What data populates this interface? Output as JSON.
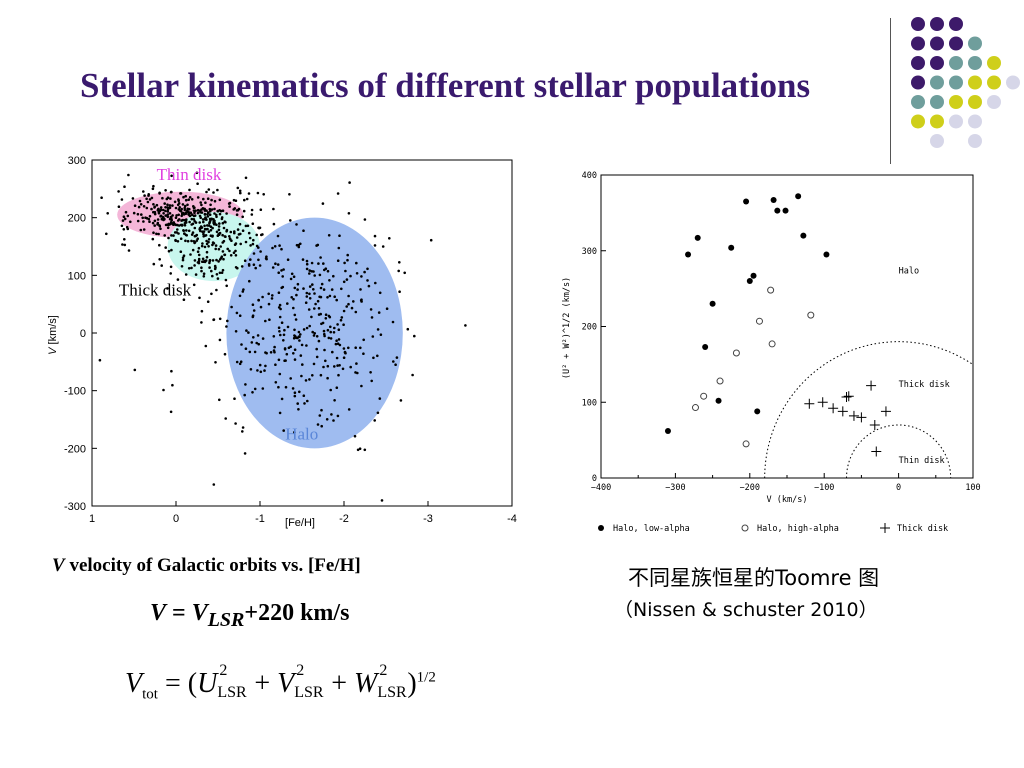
{
  "slide": {
    "title": "Stellar kinematics of different stellar populations",
    "caption_left": {
      "italic": "V",
      "rest": " velocity of Galactic orbits vs. [Fe/H]"
    },
    "formula_v": {
      "lhs": "V",
      "eq": " = ",
      "v": "V",
      "sub": "LSR",
      "rest": "+220 km/s"
    },
    "formula_vtot": {
      "v": "V",
      "v_sub": "tot",
      "eq": " = (",
      "u": "U",
      "lsr": "LSR",
      "plus": " + ",
      "vv": "V",
      "w": "W",
      "close": ")",
      "sq": "2",
      "exp": "1/2"
    },
    "caption_right_1": "不同星族恒星的Toomre 图",
    "caption_right_2": "（Nissen & schuster 2010）"
  },
  "decor": {
    "dot_colors": {
      "purple": "#3d1a6a",
      "teal": "#6f9e9c",
      "yellow": "#cfcf1a",
      "lavender": "#d6d6e8"
    },
    "dot_grid": [
      [
        "purple",
        "purple",
        "purple",
        "",
        "",
        ""
      ],
      [
        "purple",
        "purple",
        "purple",
        "teal",
        "",
        ""
      ],
      [
        "purple",
        "purple",
        "teal",
        "teal",
        "yellow",
        ""
      ],
      [
        "purple",
        "teal",
        "teal",
        "yellow",
        "yellow",
        "lavender"
      ],
      [
        "teal",
        "teal",
        "yellow",
        "yellow",
        "lavender",
        ""
      ],
      [
        "yellow",
        "yellow",
        "lavender",
        "lavender",
        "",
        ""
      ],
      [
        "",
        "lavender",
        "",
        "lavender",
        "",
        ""
      ]
    ]
  },
  "chart_data": [
    {
      "type": "scatter",
      "xlabel": "[Fe/H]",
      "ylabel_italic": "V",
      "ylabel_rest": " [km/s]",
      "xlim": [
        1,
        -4
      ],
      "ylim": [
        -300,
        300
      ],
      "xticks": [
        1,
        0,
        -1,
        -2,
        -3,
        -4
      ],
      "yticks": [
        300,
        200,
        100,
        0,
        -100,
        -200,
        -300
      ],
      "annotations": [
        {
          "text": "Thin disk",
          "color": "#e040e0",
          "x": 0.23,
          "y": 265
        },
        {
          "text": "Thick disk",
          "color": "#000000",
          "x": 0.68,
          "y": 65
        },
        {
          "text": "Halo",
          "color": "#5a86d8",
          "x": -1.3,
          "y": -185
        }
      ],
      "regions": [
        {
          "name": "Thin disk",
          "color": "#f4b6d8",
          "cx": -0.05,
          "cy": 205,
          "rx": 0.75,
          "ry": 40
        },
        {
          "name": "Thick disk",
          "color": "#c8f6ee",
          "cx": -0.45,
          "cy": 150,
          "rx": 0.55,
          "ry": 60
        },
        {
          "name": "Halo",
          "color": "#9fbcf0",
          "cx": -1.65,
          "cy": 0,
          "rx": 1.05,
          "ry": 200
        }
      ],
      "star_groups": [
        {
          "name": "thin",
          "n": 320,
          "cx": -0.05,
          "cy": 205,
          "sx": 0.38,
          "sy": 22
        },
        {
          "name": "thick",
          "n": 200,
          "cx": -0.45,
          "cy": 150,
          "sx": 0.32,
          "sy": 40
        },
        {
          "name": "halo",
          "n": 330,
          "cx": -1.6,
          "cy": 20,
          "sx": 0.5,
          "sy": 85
        },
        {
          "name": "scatter",
          "n": 70,
          "cx": -1.2,
          "cy": 40,
          "sx": 1.0,
          "sy": 140
        }
      ]
    },
    {
      "type": "scatter",
      "xlabel": "V (km/s)",
      "ylabel": "(U² + W²)^1/2 (km/s)",
      "xlim": [
        -400,
        100
      ],
      "ylim": [
        0,
        400
      ],
      "xticks": [
        -400,
        -300,
        -200,
        -100,
        0,
        100
      ],
      "yticks": [
        0,
        100,
        200,
        300,
        400
      ],
      "region_labels": [
        {
          "text": "Halo",
          "x": 0,
          "y": 270
        },
        {
          "text": "Thick disk",
          "x": 0,
          "y": 120
        },
        {
          "text": "Thin disk",
          "x": 0,
          "y": 20
        }
      ],
      "arcs": [
        {
          "r": 180
        },
        {
          "r": 70
        }
      ],
      "legend": [
        {
          "marker": "filled",
          "label": "Halo, low-alpha"
        },
        {
          "marker": "open",
          "label": "Halo, high-alpha"
        },
        {
          "marker": "plus",
          "label": "Thick disk"
        }
      ],
      "series": [
        {
          "name": "Halo, low-alpha",
          "marker": "filled",
          "points": [
            [
              -310,
              62
            ],
            [
              -283,
              295
            ],
            [
              -270,
              317
            ],
            [
              -260,
              173
            ],
            [
              -250,
              230
            ],
            [
              -242,
              102
            ],
            [
              -225,
              304
            ],
            [
              -205,
              365
            ],
            [
              -200,
              260
            ],
            [
              -195,
              267
            ],
            [
              -190,
              88
            ],
            [
              -168,
              367
            ],
            [
              -163,
              353
            ],
            [
              -152,
              353
            ],
            [
              -135,
              372
            ],
            [
              -128,
              320
            ],
            [
              -97,
              295
            ]
          ]
        },
        {
          "name": "Halo, high-alpha",
          "marker": "open",
          "points": [
            [
              -273,
              93
            ],
            [
              -262,
              108
            ],
            [
              -240,
              128
            ],
            [
              -218,
              165
            ],
            [
              -205,
              45
            ],
            [
              -187,
              207
            ],
            [
              -172,
              248
            ],
            [
              -170,
              177
            ],
            [
              -118,
              215
            ]
          ]
        },
        {
          "name": "Thick disk",
          "marker": "plus",
          "points": [
            [
              -120,
              98
            ],
            [
              -102,
              100
            ],
            [
              -88,
              92
            ],
            [
              -75,
              88
            ],
            [
              -70,
              107
            ],
            [
              -67,
              108
            ],
            [
              -60,
              82
            ],
            [
              -50,
              80
            ],
            [
              -37,
              122
            ],
            [
              -32,
              70
            ],
            [
              -30,
              35
            ],
            [
              -17,
              88
            ]
          ]
        }
      ]
    }
  ]
}
